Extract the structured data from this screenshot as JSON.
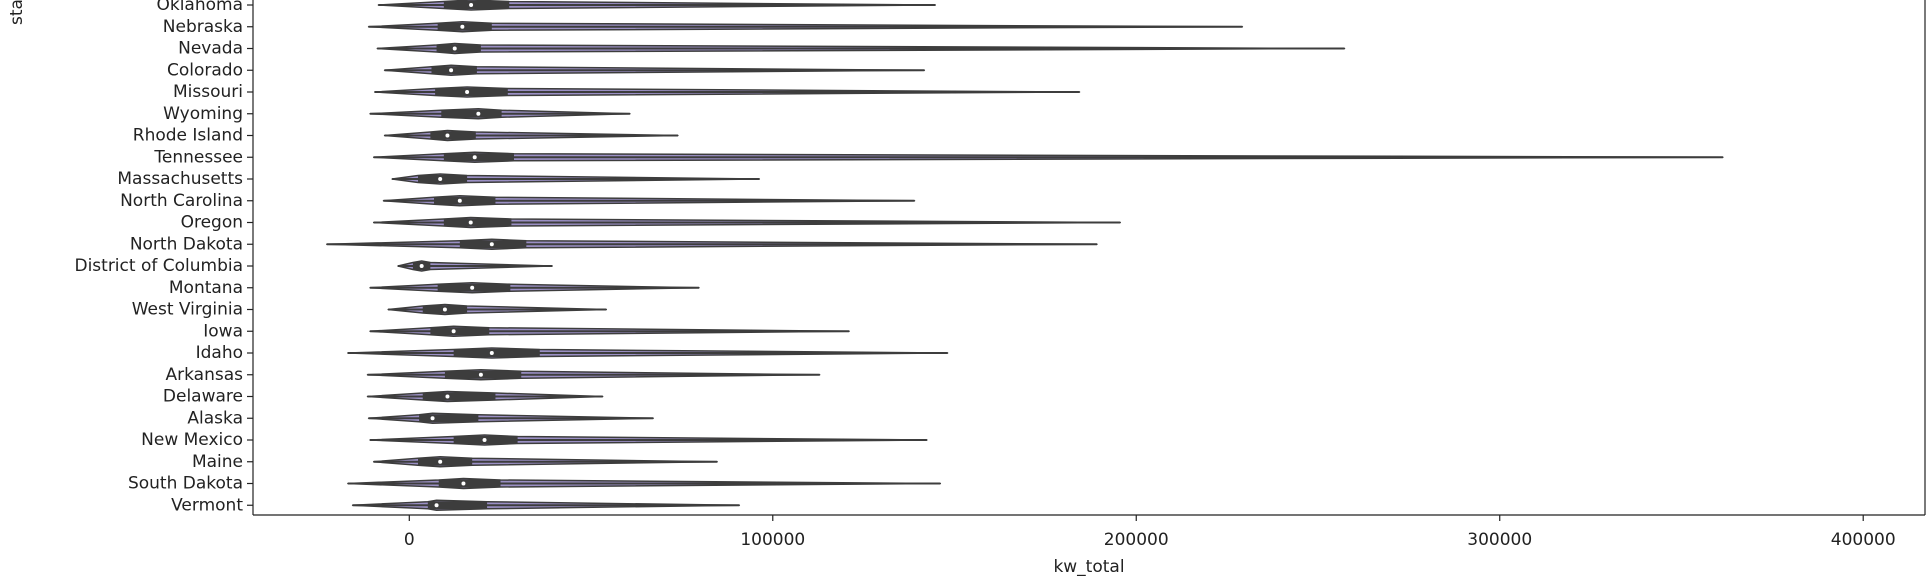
{
  "chart_data": {
    "type": "violin",
    "xlabel": "kw_total",
    "ylabel": "state",
    "xlim": [
      -43000,
      417000
    ],
    "xticks": [
      0,
      100000,
      200000,
      300000,
      400000
    ],
    "color": "#9a8fc4",
    "line_color": "#3d3d3d",
    "categories": [
      "Oklahoma",
      "Nebraska",
      "Nevada",
      "Colorado",
      "Missouri",
      "Wyoming",
      "Rhode Island",
      "Tennessee",
      "Massachusetts",
      "North Carolina",
      "Oregon",
      "North Dakota",
      "District of Columbia",
      "Montana",
      "West Virginia",
      "Iowa",
      "Idaho",
      "Arkansas",
      "Delaware",
      "Alaska",
      "New Mexico",
      "Maine",
      "South Dakota",
      "Vermont"
    ],
    "min": [
      -8500,
      -11200,
      -8800,
      -6800,
      -9500,
      -10800,
      -6800,
      -9800,
      -4700,
      -7100,
      -9800,
      -22700,
      -3100,
      -10800,
      -5800,
      -10800,
      -16900,
      -11500,
      -11500,
      -11200,
      -10800,
      -9800,
      -16900,
      -15600
    ],
    "q1": [
      9500,
      7800,
      7500,
      6100,
      7100,
      8800,
      5800,
      9500,
      2400,
      6800,
      9500,
      13900,
      1000,
      7800,
      3700,
      5800,
      12200,
      9800,
      3700,
      2700,
      12200,
      2400,
      8100,
      5100
    ],
    "median": [
      17000,
      14600,
      12500,
      11500,
      15900,
      19000,
      10500,
      18000,
      8500,
      13900,
      16900,
      22700,
      3400,
      17300,
      9800,
      12200,
      22700,
      19700,
      10500,
      6400,
      20700,
      8500,
      14900,
      7500
    ],
    "q3": [
      27500,
      22700,
      19700,
      18600,
      27100,
      25400,
      18300,
      28800,
      15900,
      23700,
      28100,
      32200,
      5800,
      27800,
      15900,
      22000,
      35900,
      30800,
      23700,
      19000,
      29800,
      17300,
      25100,
      21400
    ],
    "max": [
      144700,
      229200,
      257300,
      141700,
      184400,
      60700,
      73900,
      361400,
      96300,
      139000,
      195600,
      189200,
      39300,
      79700,
      54200,
      121000,
      148100,
      112900,
      53200,
      67100,
      142400,
      84700,
      146100,
      90800
    ]
  }
}
